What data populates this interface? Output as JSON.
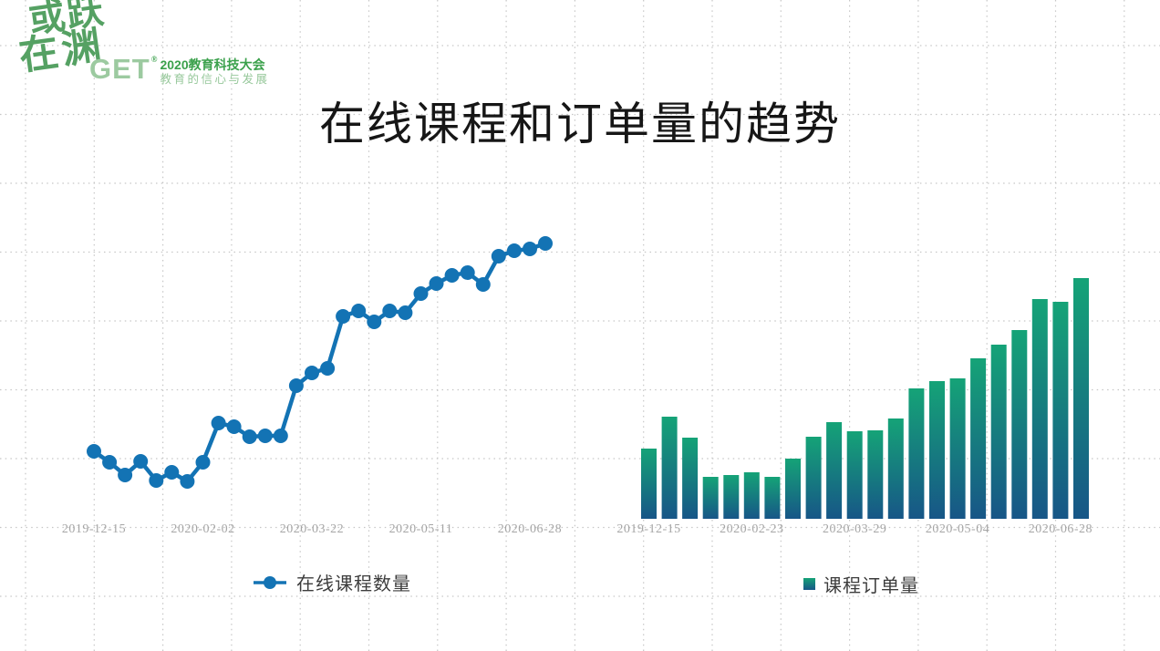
{
  "logo": {
    "calligraphy_line1": "或跃",
    "calligraphy_line2": "在渊",
    "brand": "GET",
    "registered_mark": "®",
    "event_name": "2020教育科技大会",
    "event_tagline": "教育的信心与发展"
  },
  "title": "在线课程和订单量的趋势",
  "chart_data": [
    {
      "type": "line",
      "title": "",
      "legend": "在线课程数量",
      "legend_position": "bottom",
      "color": "#1373b4",
      "marker": "circle",
      "x_tick_labels": [
        "2019-12-15",
        "2020-02-02",
        "2020-03-22",
        "2020-05-11",
        "2020-06-28"
      ],
      "x_tick_indices": [
        0,
        7,
        14,
        21,
        28
      ],
      "x_note": "30 roughly weekly dates from 2019-12-15 to 2020-06-28; only 5 ticks labeled",
      "values": [
        74,
        62,
        48,
        63,
        42,
        51,
        41,
        62,
        105,
        101,
        90,
        91,
        91,
        146,
        160,
        165,
        222,
        228,
        216,
        228,
        226,
        247,
        258,
        267,
        270,
        257,
        288,
        294,
        296,
        302
      ],
      "ylim": [
        0,
        320
      ],
      "y_axis_labels": "hidden",
      "grid": "dotted page grid only"
    },
    {
      "type": "bar",
      "title": "",
      "legend": "课程订单量",
      "legend_position": "bottom",
      "bar_gradient_top": "#15a377",
      "bar_gradient_bottom": "#175687",
      "x_tick_labels": [
        "2019-12-15",
        "2020-02-23",
        "2020-03-29",
        "2020-05-04",
        "2020-06-28"
      ],
      "x_tick_indices": [
        0,
        5,
        10,
        15,
        20
      ],
      "x_note": "22 dates from 2019-12-15 to 2020-06-28; only 5 ticks labeled",
      "values": [
        77,
        112,
        89,
        46,
        48,
        51,
        46,
        66,
        90,
        106,
        96,
        97,
        110,
        143,
        151,
        154,
        176,
        191,
        207,
        241,
        238,
        264
      ],
      "ylim": [
        0,
        320
      ],
      "y_axis_labels": "hidden",
      "grid": "dotted page grid only"
    }
  ],
  "colors": {
    "background": "#ffffff",
    "grid_dots": "#c6c6c6",
    "axis_label": "#a5a5a5",
    "title_text": "#161616",
    "legend_text": "#3c3c3c",
    "line_series": "#1373b4",
    "bar_top": "#15a377",
    "bar_bottom": "#175687",
    "logo_green_dark": "#3ba14c",
    "logo_green_mid": "#55a163",
    "logo_green_light": "#9ccaa0"
  }
}
